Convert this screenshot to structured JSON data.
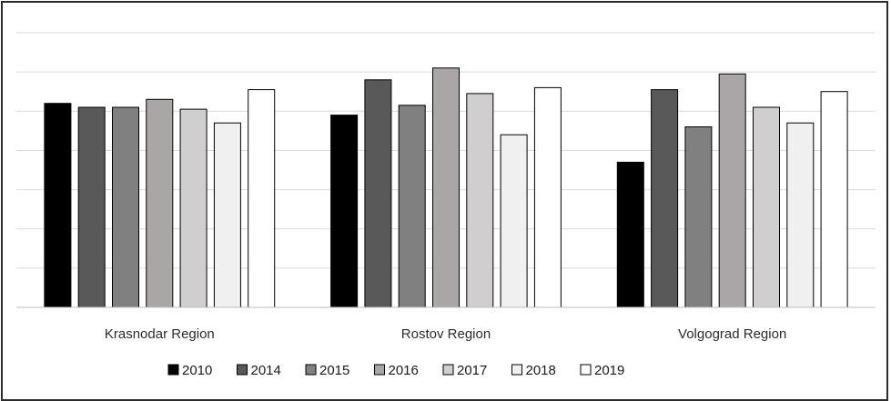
{
  "chart_data": {
    "type": "bar",
    "title": "",
    "xlabel": "",
    "ylabel": "",
    "categories": [
      "Krasnodar Region",
      "Rostov Region",
      "Volgograd Region"
    ],
    "ylim": [
      0,
      7
    ],
    "grid": true,
    "y_ticks_visible": false,
    "legend_position": "bottom",
    "series": [
      {
        "name": "2010",
        "color": "#000000",
        "values": [
          5.2,
          4.9,
          3.7
        ]
      },
      {
        "name": "2014",
        "color": "#595959",
        "values": [
          5.1,
          5.8,
          5.55
        ]
      },
      {
        "name": "2015",
        "color": "#808080",
        "values": [
          5.1,
          5.15,
          4.6
        ]
      },
      {
        "name": "2016",
        "color": "#aaa6a6",
        "values": [
          5.3,
          6.1,
          5.95
        ]
      },
      {
        "name": "2017",
        "color": "#d0cece",
        "values": [
          5.05,
          5.45,
          5.1
        ]
      },
      {
        "name": "2018",
        "color": "#f0f0f0",
        "values": [
          4.7,
          4.4,
          4.7
        ]
      },
      {
        "name": "2019",
        "color": "#ffffff",
        "values": [
          5.55,
          5.6,
          5.5
        ]
      }
    ]
  }
}
